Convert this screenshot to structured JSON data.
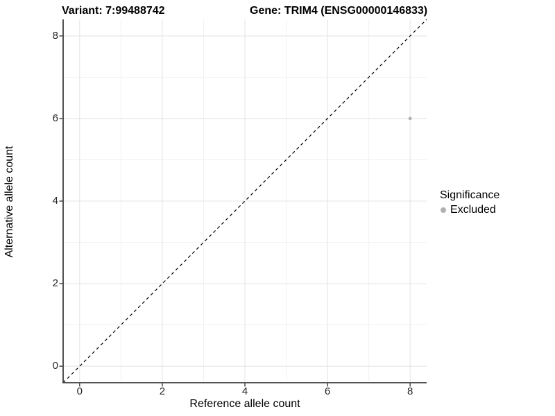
{
  "chart_data": {
    "type": "scatter",
    "titles": [
      "Variant: 7:99488742",
      "Gene: TRIM4 (ENSG00000146833)"
    ],
    "xlabel": "Reference allele count",
    "ylabel": "Alternative allele count",
    "xlim": [
      -0.4,
      8.4
    ],
    "ylim": [
      -0.4,
      8.4
    ],
    "x_ticks": [
      0,
      2,
      4,
      6,
      8
    ],
    "y_ticks": [
      0,
      2,
      4,
      6,
      8
    ],
    "x_minor_ticks": [
      1,
      3,
      5,
      7
    ],
    "y_minor_ticks": [
      1,
      3,
      5,
      7
    ],
    "grid": true,
    "legend_position": "right",
    "reference_line": {
      "type": "identity y=x",
      "style": "dashed",
      "color": "#000000"
    },
    "series": [
      {
        "name": "Excluded",
        "color": "#b0b0b0",
        "points": [
          {
            "x": 8,
            "y": 6
          }
        ]
      }
    ],
    "legend": {
      "title": "Significance",
      "items": [
        {
          "label": "Excluded",
          "color": "#b0b0b0"
        }
      ]
    },
    "colors": {
      "axis_line": "#3c3c3c",
      "tick_mark": "#3c3c3c",
      "grid_major": "#e5e5e5",
      "grid_minor": "#f1f1f1",
      "background": "#ffffff"
    }
  }
}
